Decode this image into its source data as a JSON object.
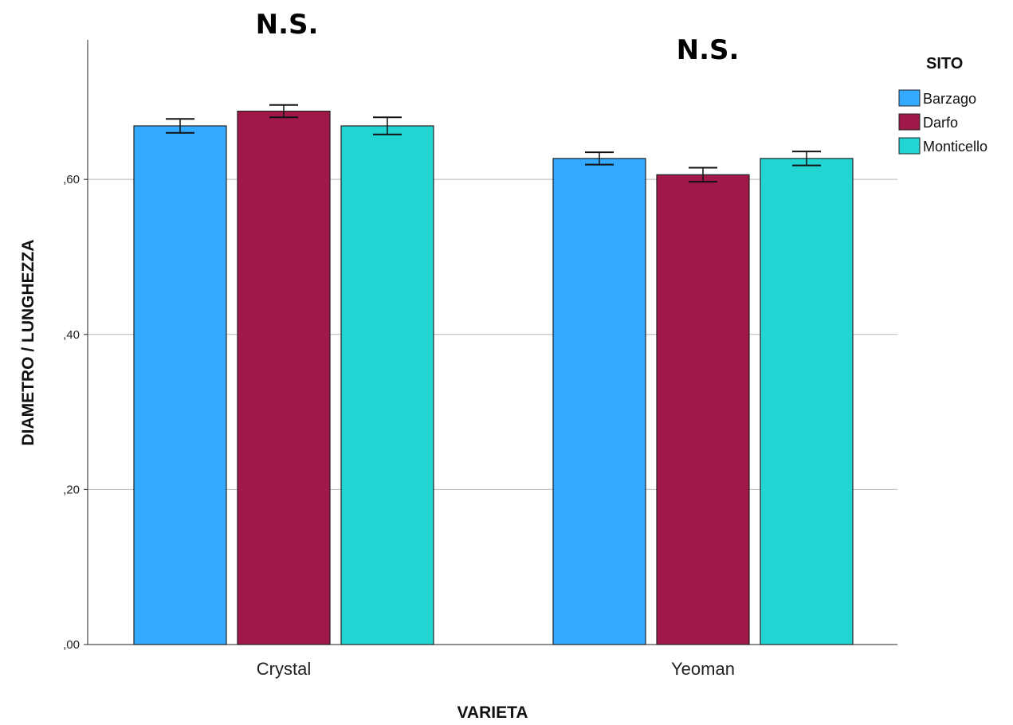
{
  "chart_data": {
    "type": "bar",
    "categories": [
      "Crystal",
      "Yeoman"
    ],
    "series": [
      {
        "name": "Barzago",
        "values": [
          0.669,
          0.627
        ],
        "error": [
          0.009,
          0.008
        ],
        "color": "#33aaff"
      },
      {
        "name": "Darfo",
        "values": [
          0.688,
          0.606
        ],
        "error": [
          0.008,
          0.009
        ],
        "color": "#a0184a"
      },
      {
        "name": "Monticello",
        "values": [
          0.669,
          0.627
        ],
        "error": [
          0.011,
          0.009
        ],
        "color": "#22d5d2"
      }
    ],
    "xlabel": "VARIETA",
    "ylabel": "DIAMETRO / LUNGHEZZA",
    "ylim": [
      0,
      0.78
    ],
    "yticks": [
      0,
      0.2,
      0.4,
      0.6
    ],
    "ytick_labels": [
      ",00",
      ",20",
      ",40",
      ",60"
    ],
    "grid": true,
    "legend": {
      "title": "SITO",
      "placement": "right"
    },
    "annotations": [
      "N.S.",
      "N.S."
    ]
  }
}
